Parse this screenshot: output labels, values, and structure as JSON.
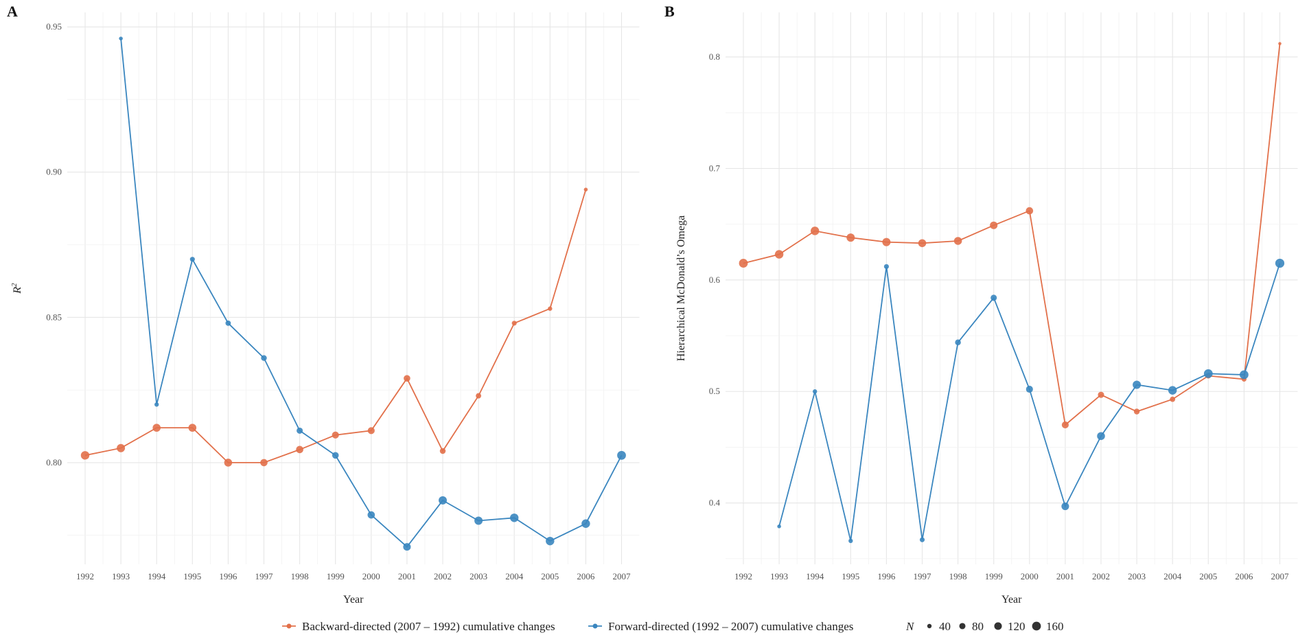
{
  "chart_data": [
    {
      "type": "line",
      "panel": "A",
      "title": "",
      "xlabel": "Year",
      "ylabel": "R²",
      "categories": [
        "1992",
        "1993",
        "1994",
        "1995",
        "1996",
        "1997",
        "1998",
        "1999",
        "2000",
        "2001",
        "2002",
        "2003",
        "2004",
        "2005",
        "2006",
        "2007"
      ],
      "ylim": [
        0.765,
        0.955
      ],
      "yticks": [
        0.8,
        0.85,
        0.9,
        0.95
      ],
      "ytick_labels": [
        "0.80",
        "0.85",
        "0.90",
        "0.95"
      ],
      "series": [
        {
          "name": "Backward-directed (2007 – 1992) cumulative changes",
          "color": "#E2704A",
          "values": [
            0.8025,
            0.805,
            0.812,
            0.812,
            0.8,
            0.8,
            0.8045,
            0.8095,
            0.811,
            0.829,
            0.804,
            0.823,
            0.848,
            0.853,
            0.894,
            null
          ],
          "n": [
            150,
            140,
            130,
            130,
            130,
            110,
            110,
            100,
            100,
            90,
            70,
            60,
            50,
            40,
            30,
            null
          ]
        },
        {
          "name": "Forward-directed (1992 – 2007) cumulative changes",
          "color": "#3A86BF",
          "values": [
            null,
            0.946,
            0.82,
            0.87,
            0.848,
            0.836,
            0.811,
            0.8025,
            0.782,
            0.771,
            0.787,
            0.78,
            0.781,
            0.773,
            0.779,
            0.8025
          ],
          "n": [
            null,
            30,
            40,
            50,
            60,
            70,
            80,
            90,
            110,
            120,
            140,
            140,
            150,
            150,
            150,
            160
          ]
        }
      ]
    },
    {
      "type": "line",
      "panel": "B",
      "title": "",
      "xlabel": "Year",
      "ylabel": "Hierarchical McDonald’s Omega",
      "categories": [
        "1992",
        "1993",
        "1994",
        "1995",
        "1996",
        "1997",
        "1998",
        "1999",
        "2000",
        "2001",
        "2002",
        "2003",
        "2004",
        "2005",
        "2006",
        "2007"
      ],
      "ylim": [
        0.345,
        0.84
      ],
      "yticks": [
        0.4,
        0.5,
        0.6,
        0.7,
        0.8
      ],
      "ytick_labels": [
        "0.4",
        "0.5",
        "0.6",
        "0.7",
        "0.8"
      ],
      "series": [
        {
          "name": "Backward-directed (2007 – 1992) cumulative changes",
          "color": "#E2704A",
          "values": [
            0.615,
            0.623,
            0.644,
            0.638,
            0.634,
            0.633,
            0.635,
            0.649,
            0.662,
            0.47,
            0.497,
            0.482,
            0.493,
            0.514,
            0.511,
            0.812
          ],
          "n": [
            160,
            150,
            150,
            140,
            140,
            130,
            130,
            120,
            110,
            100,
            80,
            70,
            60,
            60,
            50,
            20
          ]
        },
        {
          "name": "Forward-directed (1992 – 2007) cumulative changes",
          "color": "#3A86BF",
          "values": [
            null,
            0.379,
            0.5,
            0.366,
            0.612,
            0.367,
            0.544,
            0.584,
            0.502,
            0.397,
            0.46,
            0.506,
            0.501,
            0.516,
            0.515,
            0.615
          ],
          "n": [
            null,
            30,
            40,
            40,
            50,
            50,
            70,
            80,
            100,
            120,
            130,
            140,
            150,
            160,
            160,
            170
          ]
        }
      ]
    }
  ],
  "legend": {
    "series_labels": [
      "Backward-directed (2007 – 1992) cumulative changes",
      "Forward-directed (1992 – 2007) cumulative changes"
    ],
    "size_title": "N",
    "size_values": [
      40,
      80,
      120,
      160
    ],
    "size_labels": [
      "40",
      "80",
      "120",
      "160"
    ]
  },
  "panels": {
    "a_label": "A",
    "b_label": "B"
  },
  "colors": {
    "backward": "#E2704A",
    "forward": "#3A86BF"
  }
}
